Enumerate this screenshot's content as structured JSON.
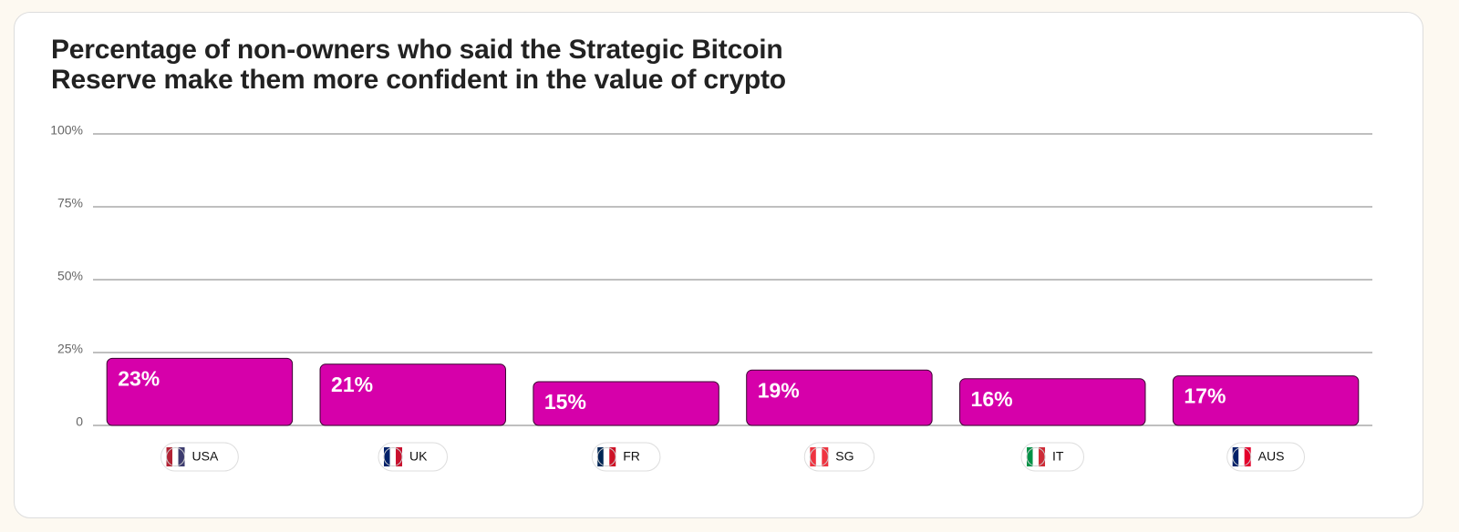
{
  "chart_data": {
    "type": "bar",
    "title": "Percentage of non-owners who said the Strategic Bitcoin Reserve make them more confident in the value of crypto",
    "categories": [
      "USA",
      "UK",
      "FR",
      "SG",
      "IT",
      "AUS"
    ],
    "values": [
      23,
      21,
      15,
      19,
      16,
      17
    ],
    "value_labels": [
      "23%",
      "21%",
      "15%",
      "19%",
      "16%",
      "17%"
    ],
    "color": "#d600aa",
    "ylim": [
      0,
      100
    ],
    "yticks": [
      0,
      {
        "value": 25,
        "label": "25%"
      },
      {
        "value": 50,
        "label": "50%"
      },
      {
        "value": 75,
        "label": "75%"
      },
      {
        "value": 100,
        "label": "100%"
      }
    ],
    "grid": true
  }
}
